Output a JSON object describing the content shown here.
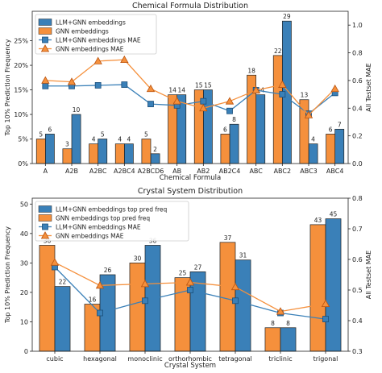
{
  "chart_data": [
    {
      "type": "bar",
      "title": "Chemical Formula Distribution",
      "xlabel": "Chemical Formula",
      "ylabel": "Top 10% Prediction Frequency",
      "y2label": "All Testset MAE",
      "categories": [
        "A",
        "A2B",
        "A2BC",
        "A2BC4",
        "A2BCD6",
        "AB",
        "AB2",
        "AB2C4",
        "ABC",
        "ABC2",
        "ABC3",
        "ABC4"
      ],
      "ylim": [
        0,
        31
      ],
      "y2lim": [
        0,
        1.1
      ],
      "yticks": [
        0,
        5,
        10,
        15,
        20,
        25
      ],
      "y2ticks": [
        0.0,
        0.2,
        0.4,
        0.6,
        0.8,
        1.0
      ],
      "ytick_labels": [
        "0%",
        "5%",
        "10%",
        "15%",
        "20%",
        "25%"
      ],
      "y2tick_labels": [
        "0.0",
        "0.2",
        "0.4",
        "0.6",
        "0.8",
        "1.0"
      ],
      "legend": "top-left",
      "bar_series": [
        {
          "name": "LLM+GNN embeddings",
          "color": "#3a80b8",
          "values": [
            6,
            10,
            5,
            4,
            2,
            14,
            15,
            8,
            14,
            29,
            4,
            7
          ]
        },
        {
          "name": "GNN embeddings",
          "color": "#f5903c",
          "values": [
            5,
            3,
            4,
            4,
            5,
            14,
            15,
            6,
            18,
            22,
            13,
            6
          ]
        }
      ],
      "line_series": [
        {
          "name": "LLM+GNN embeddings MAE",
          "color": "#3a80b8",
          "marker": "square",
          "values": [
            0.56,
            0.56,
            0.565,
            0.57,
            0.43,
            0.42,
            0.45,
            0.38,
            0.53,
            0.5,
            0.36,
            0.51
          ]
        },
        {
          "name": "GNN embeddings MAE",
          "color": "#f5903c",
          "marker": "triangle",
          "values": [
            0.6,
            0.59,
            0.74,
            0.75,
            0.54,
            0.45,
            0.4,
            0.45,
            0.53,
            0.57,
            0.35,
            0.54
          ]
        }
      ]
    },
    {
      "type": "bar",
      "title": "Crystal System Distribution",
      "xlabel": "Crystal System",
      "ylabel": "Top 10% Prediction Frequency",
      "y2label": "All Testset MAE",
      "categories": [
        "cubic",
        "hexagonal",
        "monoclinic",
        "orthorhombic",
        "tetragonal",
        "triclinic",
        "trigonal"
      ],
      "ylim": [
        0,
        52
      ],
      "y2lim": [
        0.3,
        0.8
      ],
      "yticks": [
        0,
        10,
        20,
        30,
        40,
        50
      ],
      "y2ticks": [
        0.3,
        0.4,
        0.5,
        0.6,
        0.7,
        0.8
      ],
      "ytick_labels": [
        "0",
        "10",
        "20",
        "30",
        "40",
        "50"
      ],
      "y2tick_labels": [
        "0.3",
        "0.4",
        "0.5",
        "0.6",
        "0.7",
        "0.8"
      ],
      "legend": "top-left",
      "bar_series": [
        {
          "name": "GNN embeddings top pred freq",
          "color": "#f5903c",
          "values": [
            36,
            16,
            30,
            25,
            37,
            8,
            43
          ]
        },
        {
          "name": "LLM+GNN embeddings top pred freq",
          "color": "#3a80b8",
          "values": [
            22,
            26,
            36,
            27,
            31,
            8,
            45
          ]
        }
      ],
      "line_series": [
        {
          "name": "LLM+GNN embeddings MAE",
          "color": "#3a80b8",
          "marker": "square",
          "values": [
            0.575,
            0.425,
            0.465,
            0.5,
            0.465,
            0.425,
            0.405
          ]
        },
        {
          "name": "GNN embeddings MAE",
          "color": "#f5903c",
          "marker": "triangle",
          "values": [
            0.59,
            0.515,
            0.52,
            0.525,
            0.51,
            0.43,
            0.455
          ]
        }
      ],
      "legend_order": [
        1,
        0
      ]
    }
  ]
}
